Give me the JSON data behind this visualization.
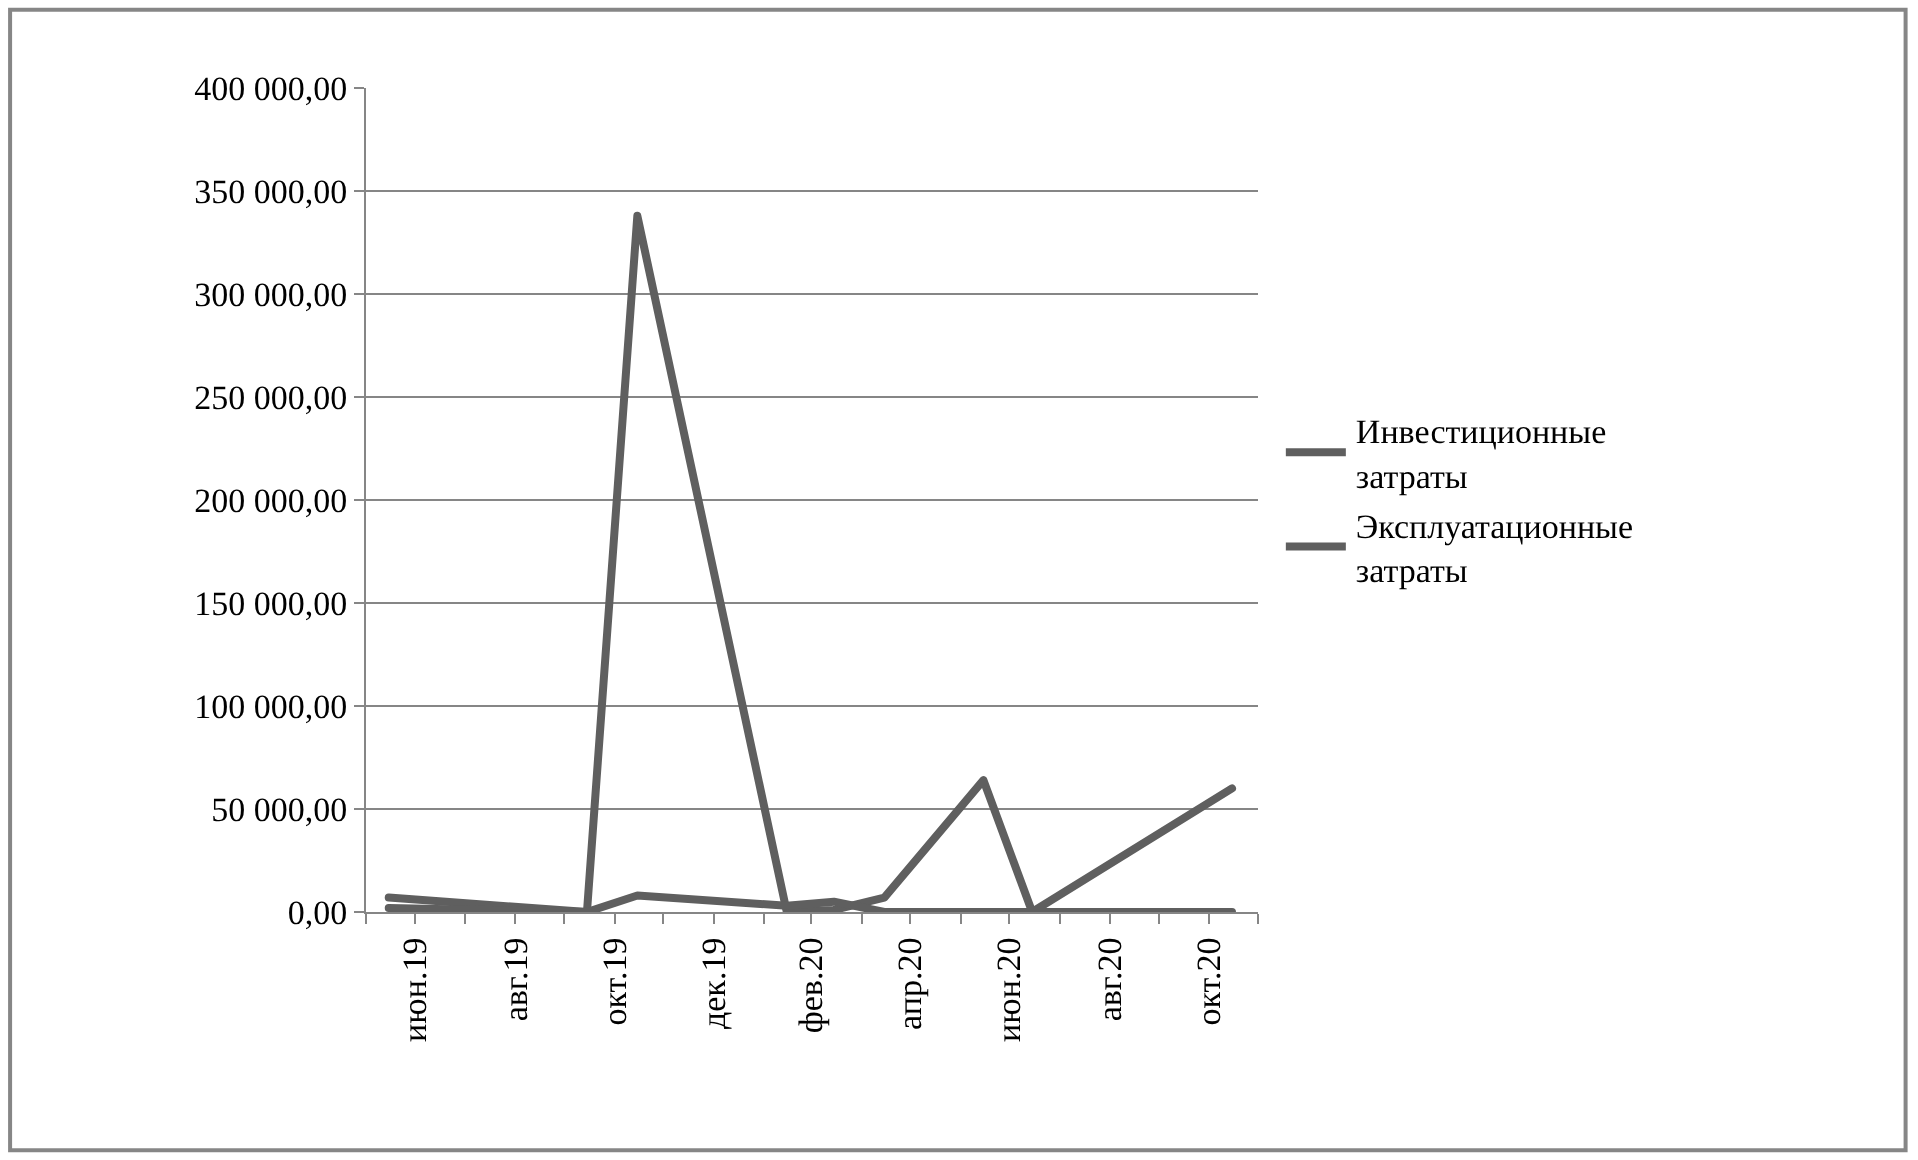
{
  "chart_data": {
    "type": "line",
    "x": [
      "2019-06-15",
      "2019-07-15",
      "2019-08-15",
      "2019-09-15",
      "2019-10-15",
      "2019-11-15",
      "2019-12-15",
      "2020-01-15",
      "2020-02-15",
      "2020-03-15",
      "2020-04-15",
      "2020-05-15",
      "2020-06-15",
      "2020-07-15",
      "2020-08-15",
      "2020-09-15",
      "2020-10-15",
      "2020-11-15"
    ],
    "series": [
      {
        "name": "Инвестиционные затраты",
        "color": "#5f5f5f",
        "values": [
          7000,
          null,
          null,
          null,
          0,
          338000,
          null,
          null,
          0,
          1000,
          7000,
          null,
          64000,
          0,
          null,
          null,
          null,
          60000
        ]
      },
      {
        "name": "Эксплуатационные затраты",
        "color": "#5f5f5f",
        "values": [
          2000,
          null,
          null,
          null,
          0,
          8000,
          null,
          null,
          3000,
          5000,
          0,
          null,
          0,
          0,
          null,
          null,
          null,
          0
        ]
      }
    ],
    "xlim": [
      "2019-06-01",
      "2020-12-01"
    ],
    "xticks": [
      {
        "value": "2019-06-01",
        "label": null
      },
      {
        "value": "2019-07-01",
        "label": "июн.19"
      },
      {
        "value": "2019-08-01",
        "label": null
      },
      {
        "value": "2019-09-01",
        "label": "авг.19"
      },
      {
        "value": "2019-10-01",
        "label": null
      },
      {
        "value": "2019-11-01",
        "label": "окт.19"
      },
      {
        "value": "2019-12-01",
        "label": null
      },
      {
        "value": "2020-01-01",
        "label": "дек.19"
      },
      {
        "value": "2020-02-01",
        "label": null
      },
      {
        "value": "2020-03-01",
        "label": "фев.20"
      },
      {
        "value": "2020-04-01",
        "label": null
      },
      {
        "value": "2020-05-01",
        "label": "апр.20"
      },
      {
        "value": "2020-06-01",
        "label": null
      },
      {
        "value": "2020-07-01",
        "label": "июн.20"
      },
      {
        "value": "2020-08-01",
        "label": null
      },
      {
        "value": "2020-09-01",
        "label": "авг.20"
      },
      {
        "value": "2020-10-01",
        "label": null
      },
      {
        "value": "2020-11-01",
        "label": "окт.20"
      },
      {
        "value": "2020-12-01",
        "label": null
      }
    ],
    "ylim": [
      0,
      400000
    ],
    "yticks": [
      {
        "value": 0,
        "label": "0,00"
      },
      {
        "value": 50000,
        "label": "50 000,00"
      },
      {
        "value": 100000,
        "label": "100 000,00"
      },
      {
        "value": 150000,
        "label": "150 000,00"
      },
      {
        "value": 200000,
        "label": "200 000,00"
      },
      {
        "value": 250000,
        "label": "250 000,00"
      },
      {
        "value": 300000,
        "label": "300 000,00"
      },
      {
        "value": 350000,
        "label": "350 000,00"
      },
      {
        "value": 400000,
        "label": "400 000,00"
      }
    ],
    "grid": "y",
    "legend": "right",
    "marker": "none",
    "line_style": "solid"
  }
}
